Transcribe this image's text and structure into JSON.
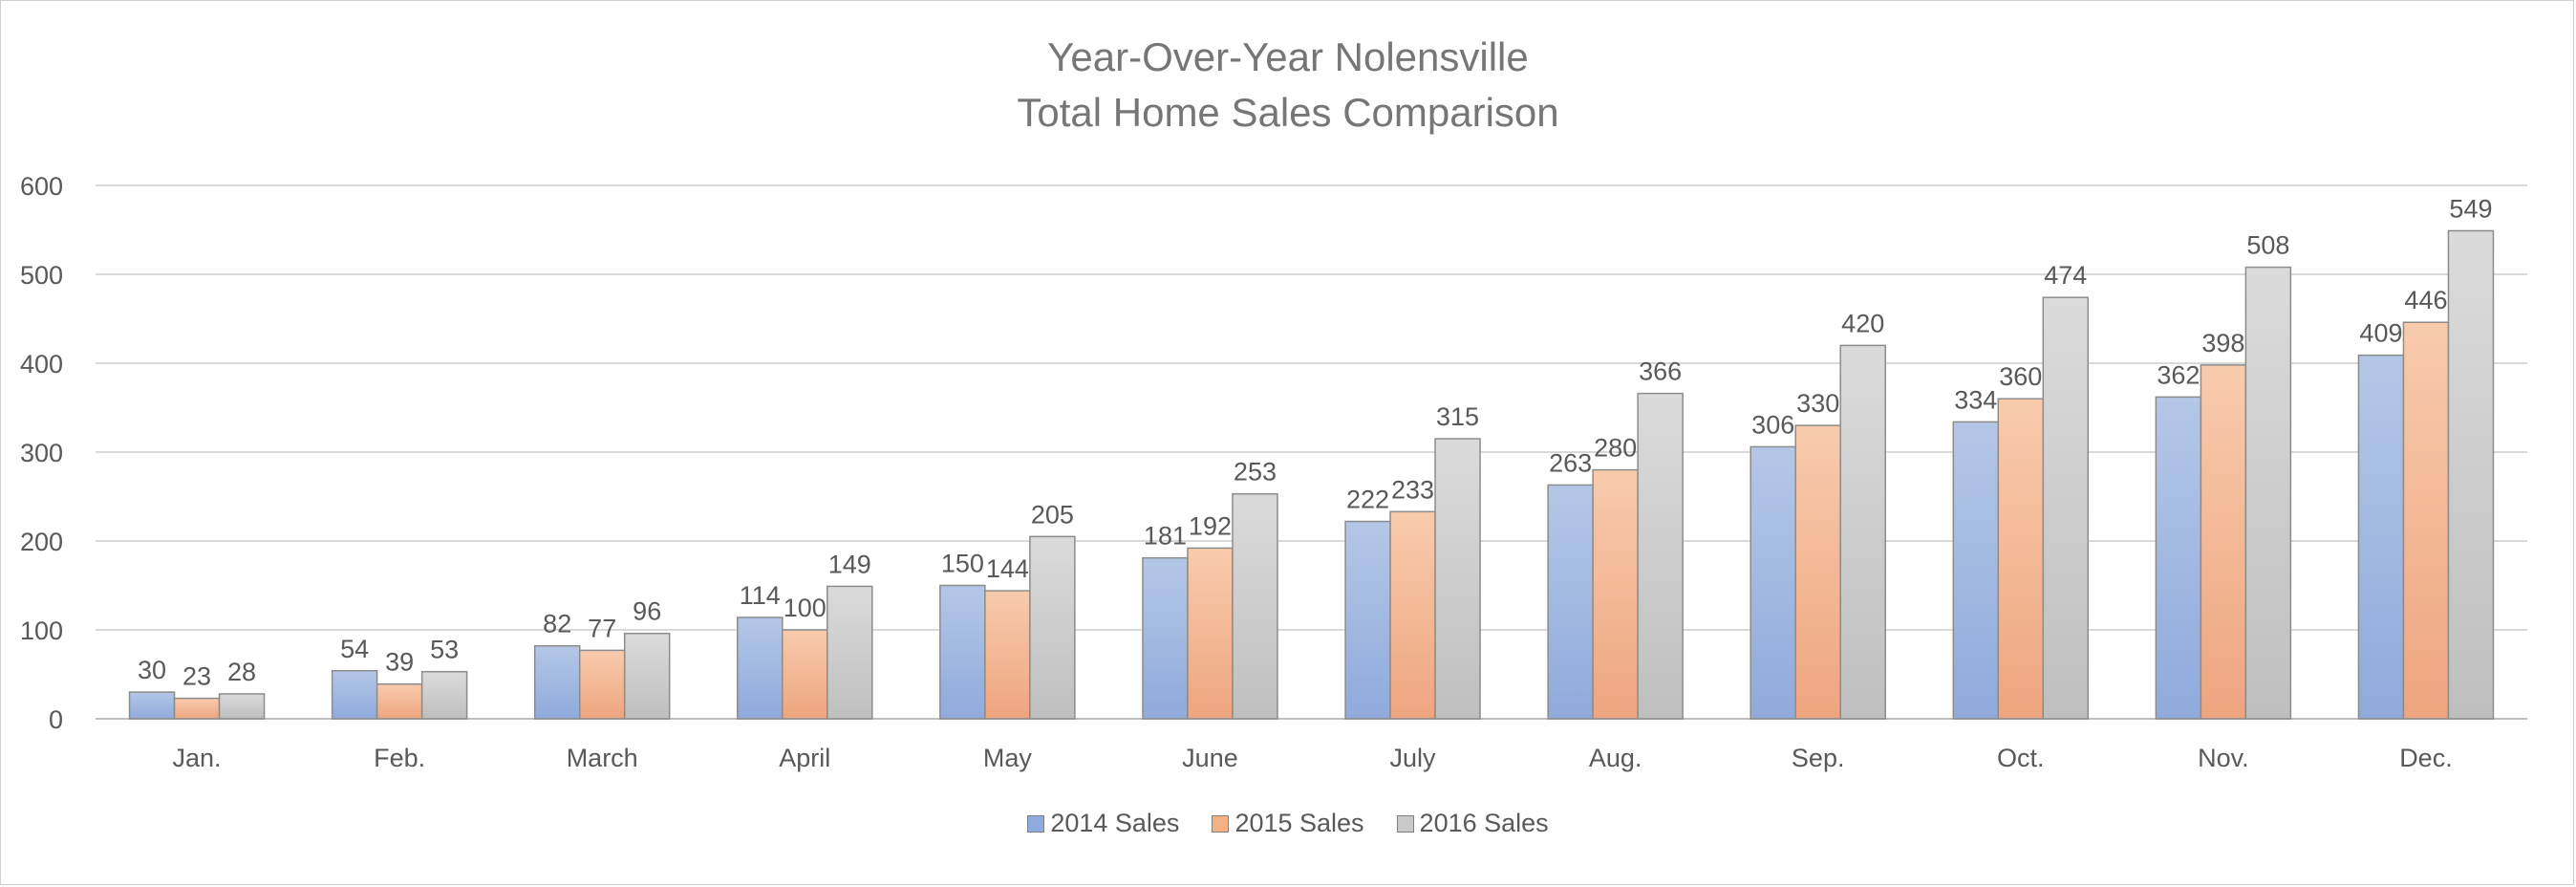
{
  "chart_data": {
    "type": "bar",
    "title": [
      "Year-Over-Year Nolensville",
      "Total Home Sales Comparison"
    ],
    "xlabel": "",
    "ylabel": "",
    "ylim": [
      0,
      600
    ],
    "yticks": [
      0,
      100,
      200,
      300,
      400,
      500,
      600
    ],
    "grid": true,
    "legend_position": "bottom",
    "categories": [
      "Jan.",
      "Feb.",
      "March",
      "April",
      "May",
      "June",
      "July",
      "Aug.",
      "Sep.",
      "Oct.",
      "Nov.",
      "Dec."
    ],
    "series": [
      {
        "name": "2014 Sales",
        "color": "#8faadc",
        "values": [
          30,
          54,
          82,
          114,
          150,
          181,
          222,
          263,
          306,
          334,
          362,
          409
        ]
      },
      {
        "name": "2015 Sales",
        "color": "#f4b183",
        "values": [
          23,
          39,
          77,
          100,
          144,
          192,
          233,
          280,
          330,
          360,
          398,
          446
        ]
      },
      {
        "name": "2016 Sales",
        "color": "#c9c9c9",
        "values": [
          28,
          53,
          96,
          149,
          205,
          253,
          315,
          366,
          420,
          474,
          508,
          549
        ]
      }
    ]
  }
}
